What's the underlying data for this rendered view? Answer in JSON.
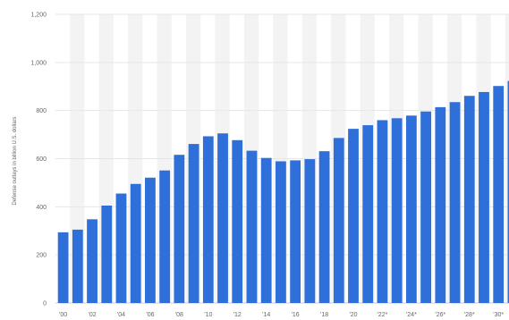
{
  "chart_data": {
    "type": "bar",
    "ylabel": "Defense outlays in billion U.S. dollars",
    "ylim": [
      0,
      1200
    ],
    "yticks": [
      0,
      200,
      400,
      600,
      800,
      "1,000",
      "1,200"
    ],
    "grid": true,
    "bar_color": "#2f6fd9",
    "band_color": "#f3f3f3",
    "categories": [
      "2000",
      "2001",
      "2002",
      "2003",
      "2004",
      "2005",
      "2006",
      "2007",
      "2008",
      "2009",
      "2010",
      "2011",
      "2012",
      "2013",
      "2014",
      "2015",
      "2016",
      "2017",
      "2018",
      "2019",
      "2020",
      "2021*",
      "2022*",
      "2023*",
      "2024*",
      "2025*",
      "2026*",
      "2027*",
      "2028*",
      "2029*",
      "2030*",
      "2031*"
    ],
    "xtick_labels": [
      "'00",
      "",
      "'02",
      "",
      "'04",
      "",
      "'06",
      "",
      "'08",
      "",
      "'10",
      "",
      "'12",
      "",
      "'14",
      "",
      "'16",
      "",
      "'18",
      "",
      "'20",
      "",
      "'22*",
      "",
      "'24*",
      "",
      "'26*",
      "",
      "'28*",
      "",
      "'30*",
      ""
    ],
    "values": [
      294,
      305,
      348,
      405,
      455,
      495,
      521,
      551,
      616,
      661,
      693,
      705,
      677,
      633,
      603,
      589,
      593,
      598,
      631,
      686,
      724,
      739,
      760,
      768,
      779,
      796,
      814,
      835,
      861,
      877,
      902,
      923
    ]
  }
}
